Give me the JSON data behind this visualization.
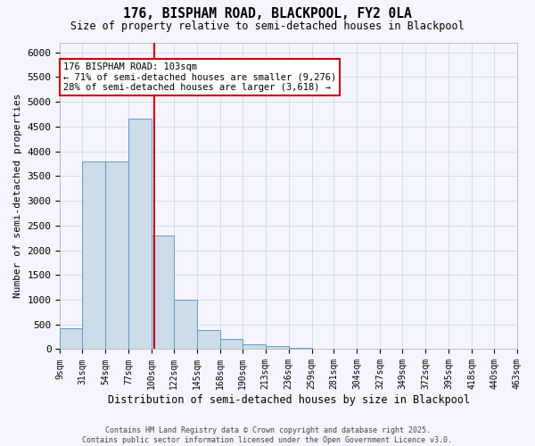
{
  "title1": "176, BISPHAM ROAD, BLACKPOOL, FY2 0LA",
  "title2": "Size of property relative to semi-detached houses in Blackpool",
  "xlabel": "Distribution of semi-detached houses by size in Blackpool",
  "ylabel": "Number of semi-detached properties",
  "bar_edges": [
    9,
    31,
    54,
    77,
    100,
    122,
    145,
    168,
    190,
    213,
    236,
    259,
    281,
    304,
    327,
    349,
    372,
    395,
    418,
    440,
    463
  ],
  "bar_heights": [
    430,
    3800,
    3800,
    4650,
    2300,
    1000,
    380,
    200,
    90,
    60,
    20,
    10,
    5,
    3,
    2,
    2,
    1,
    1,
    1,
    1
  ],
  "bar_color": "#ccdce8",
  "bar_edge_color": "#6699cc",
  "property_size": 103,
  "property_line_color": "#cc0000",
  "annotation_line1": "176 BISPHAM ROAD: 103sqm",
  "annotation_line2": "← 71% of semi-detached houses are smaller (9,276)",
  "annotation_line3": "28% of semi-detached houses are larger (3,618) →",
  "annotation_box_color": "#ffffff",
  "annotation_box_edge_color": "#cc0000",
  "ylim": [
    0,
    6200
  ],
  "yticks": [
    0,
    500,
    1000,
    1500,
    2000,
    2500,
    3000,
    3500,
    4000,
    4500,
    5000,
    5500,
    6000
  ],
  "tick_labels": [
    "9sqm",
    "31sqm",
    "54sqm",
    "77sqm",
    "100sqm",
    "122sqm",
    "145sqm",
    "168sqm",
    "190sqm",
    "213sqm",
    "236sqm",
    "259sqm",
    "281sqm",
    "304sqm",
    "327sqm",
    "349sqm",
    "372sqm",
    "395sqm",
    "418sqm",
    "440sqm",
    "463sqm"
  ],
  "footer1": "Contains HM Land Registry data © Crown copyright and database right 2025.",
  "footer2": "Contains public sector information licensed under the Open Government Licence v3.0.",
  "background_color": "#f5f5ff",
  "grid_color": "#c8d4e0",
  "title_fontsize": 10.5,
  "subtitle_fontsize": 8.5
}
